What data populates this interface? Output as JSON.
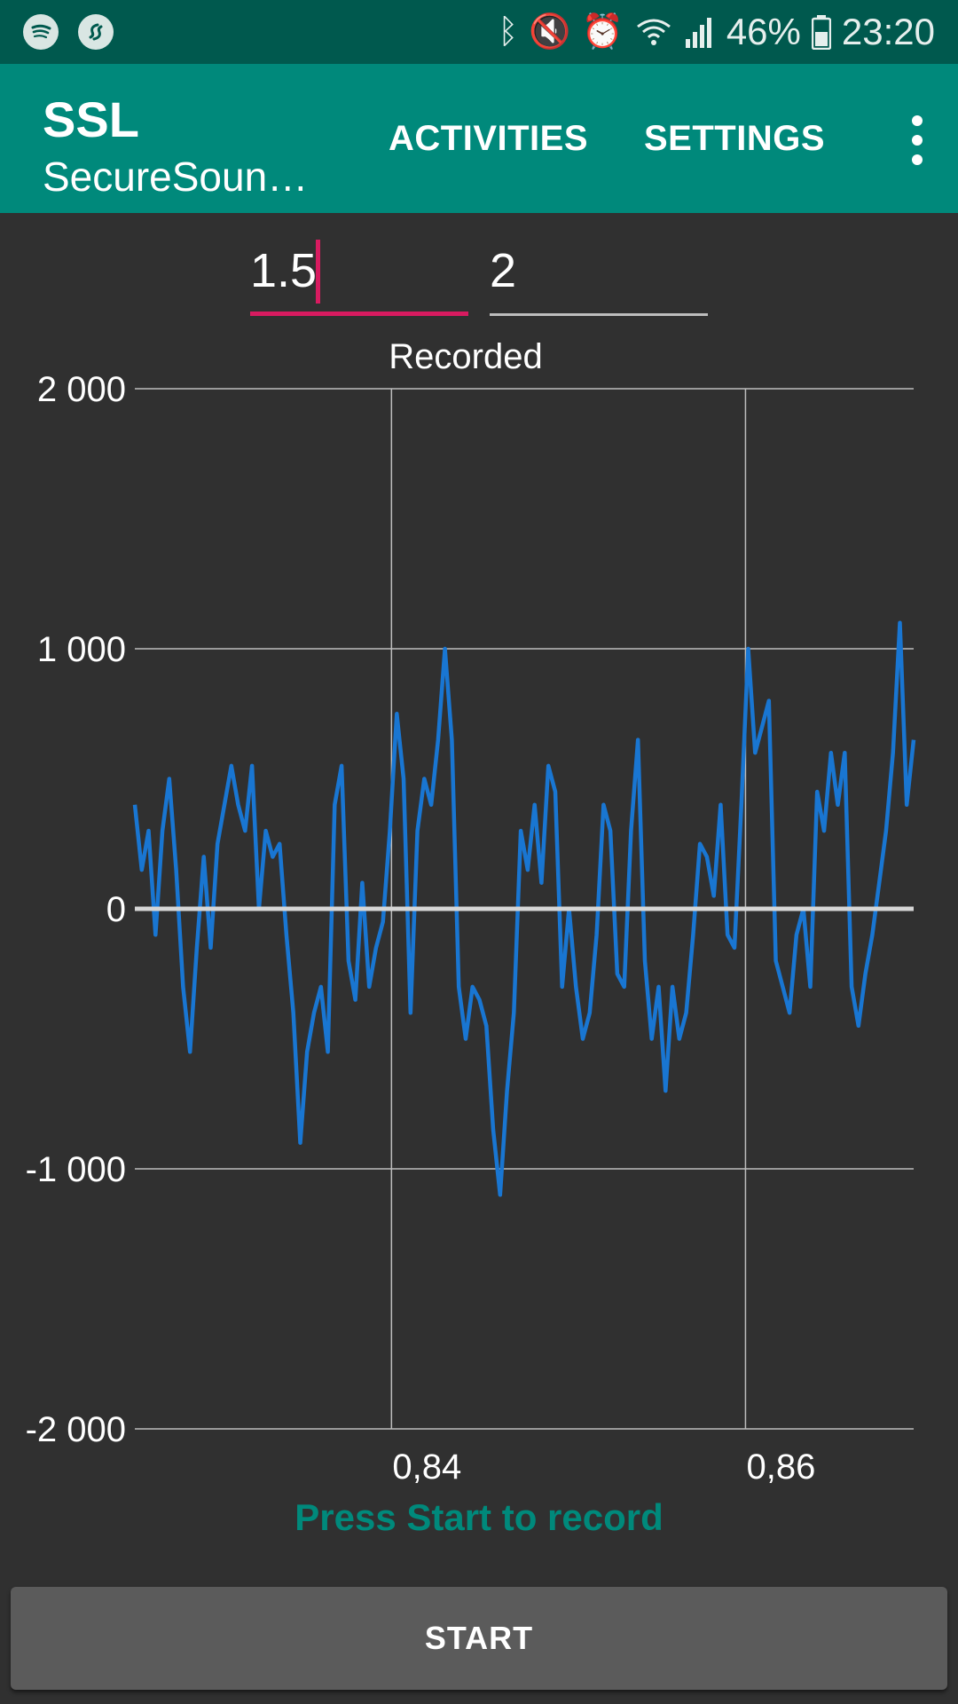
{
  "status_bar": {
    "left_icons": [
      "spotify-icon",
      "shazam-icon"
    ],
    "right_icons": [
      "bluetooth-icon",
      "mute-icon",
      "alarm-icon",
      "wifi-icon",
      "signal-icon"
    ],
    "battery_percent": "46%",
    "time": "23:20"
  },
  "app_bar": {
    "title": "SSL",
    "subtitle": "SecureSoundLogger",
    "actions": [
      "ACTIVITIES",
      "SETTINGS"
    ],
    "overflow_icon": "more-vert-icon",
    "color": "#00897b"
  },
  "inputs": {
    "start_value": "1.5",
    "end_value": "2"
  },
  "chart_data": {
    "type": "line",
    "title": "Recorded",
    "xlim": [
      0.8255,
      0.8695
    ],
    "ylim": [
      -2000,
      2000
    ],
    "x_ticks": [
      0.84,
      0.86
    ],
    "x_tick_labels": [
      "0,84",
      "0,86"
    ],
    "y_ticks": [
      -2000,
      -1000,
      0,
      1000,
      2000
    ],
    "y_tick_labels": [
      "-2 000",
      "-1 000",
      "0",
      "1 000",
      "2 000"
    ],
    "grid": true,
    "line_color": "#1976d2",
    "series": [
      {
        "x_start": 0.8255,
        "x_end": 0.8695,
        "values": [
          400,
          150,
          300,
          -100,
          300,
          500,
          150,
          -300,
          -550,
          -150,
          200,
          -150,
          250,
          400,
          550,
          400,
          300,
          550,
          0,
          300,
          200,
          250,
          -100,
          -400,
          -900,
          -550,
          -400,
          -300,
          -550,
          400,
          550,
          -200,
          -350,
          100,
          -300,
          -150,
          -50,
          300,
          750,
          500,
          -400,
          300,
          500,
          400,
          650,
          1000,
          650,
          -300,
          -500,
          -300,
          -350,
          -450,
          -850,
          -1100,
          -700,
          -400,
          300,
          150,
          400,
          100,
          550,
          450,
          -300,
          0,
          -300,
          -500,
          -400,
          -100,
          400,
          300,
          -250,
          -300,
          300,
          650,
          -200,
          -500,
          -300,
          -700,
          -300,
          -500,
          -400,
          -100,
          250,
          200,
          50,
          400,
          -100,
          -150,
          400,
          1000,
          600,
          700,
          800,
          -200,
          -300,
          -400,
          -100,
          0,
          -300,
          450,
          300,
          600,
          400,
          600,
          -300,
          -450,
          -250,
          -100,
          100,
          300,
          600,
          1100,
          400,
          650
        ]
      }
    ]
  },
  "status_message": "Press Start to record",
  "start_button": {
    "label": "START"
  }
}
